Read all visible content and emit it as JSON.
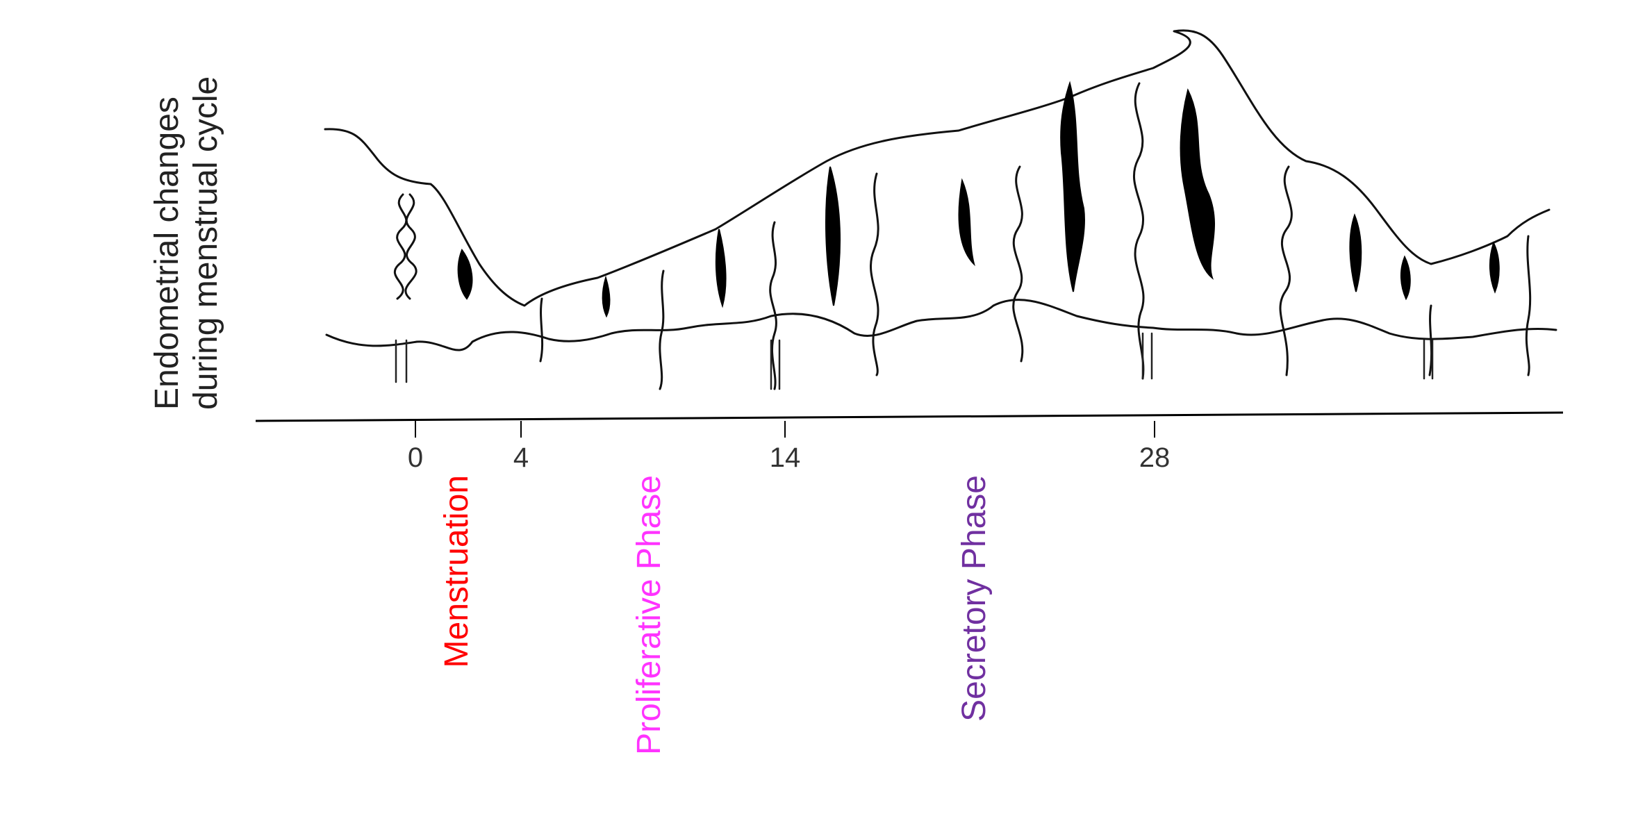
{
  "y_axis_label_line1": "Endometrial changes",
  "y_axis_label_line2": "during menstrual cycle",
  "axis_ticks": [
    {
      "label": "0",
      "day": 0
    },
    {
      "label": "4",
      "day": 4
    },
    {
      "label": "14",
      "day": 14
    },
    {
      "label": "28",
      "day": 28
    }
  ],
  "phases": [
    {
      "label": "Menstruation",
      "color": "#ff0000"
    },
    {
      "label": "Proliferative Phase",
      "color": "#ff33ff"
    },
    {
      "label": "Secretory Phase",
      "color": "#7030a0"
    }
  ]
}
